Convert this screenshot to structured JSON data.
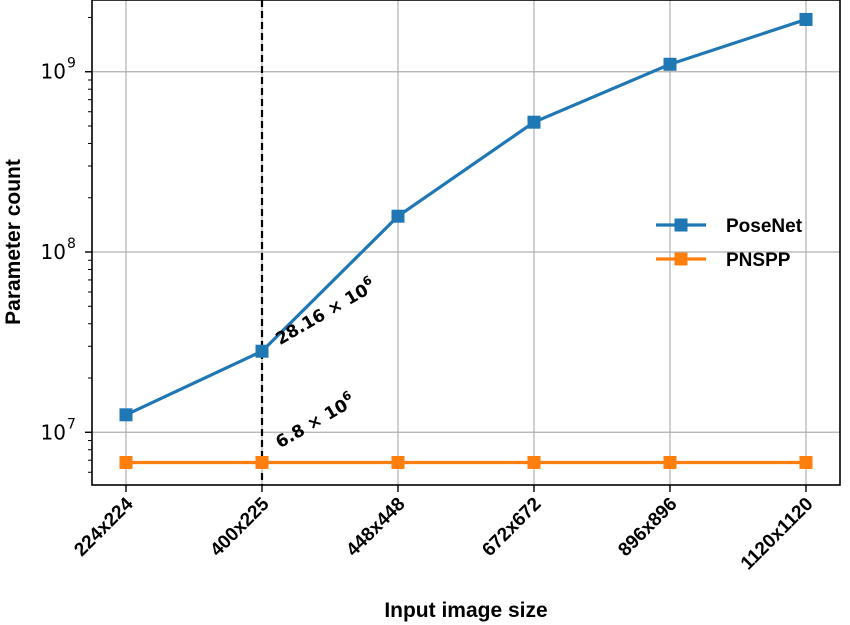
{
  "chart_data": {
    "type": "line",
    "categories": [
      "224x224",
      "400x225",
      "448x448",
      "672x672",
      "896x896",
      "1120x1120"
    ],
    "series": [
      {
        "name": "PoseNet",
        "values": [
          12500000,
          28160000,
          158000000,
          525000000,
          1100000000,
          1950000000
        ],
        "color": "#1f77b4",
        "marker": "square"
      },
      {
        "name": "PNSPP",
        "values": [
          6800000,
          6800000,
          6800000,
          6800000,
          6800000,
          6800000
        ],
        "color": "#ff7f0e",
        "marker": "square"
      }
    ],
    "xlabel": "Input image size",
    "ylabel": "Parameter count",
    "yscale": "log",
    "ylim": [
      5100000,
      2500000000
    ],
    "yticks": [
      {
        "value": 10000000,
        "base": "10",
        "exp": "7"
      },
      {
        "value": 100000000,
        "base": "10",
        "exp": "8"
      },
      {
        "value": 1000000000,
        "base": "10",
        "exp": "9"
      }
    ],
    "vline": {
      "category": "400x225",
      "style": "dashed",
      "color": "#000000"
    },
    "annotations": [
      {
        "category": "400x225",
        "value": 28160000,
        "mantissa": "28.16",
        "times": "×",
        "base": "10",
        "exp": "6",
        "rotation": -30
      },
      {
        "category": "400x225",
        "value": 6800000,
        "mantissa": "6.8",
        "times": "×",
        "base": "10",
        "exp": "6",
        "rotation": -30
      }
    ],
    "grid": true,
    "legend_position": "center-right"
  }
}
